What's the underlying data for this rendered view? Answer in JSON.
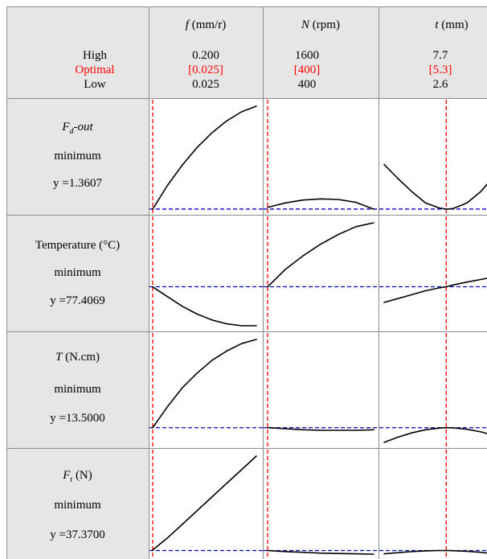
{
  "header": {
    "factors": [
      {
        "name": "f",
        "unit": "(mm/r)",
        "high": "0.200",
        "optimal": "[0.025]",
        "low": "0.025"
      },
      {
        "name": "N",
        "unit": "(rpm)",
        "high": "1600",
        "optimal": "[400]",
        "low": "400"
      },
      {
        "name": "t",
        "unit": "(mm)",
        "high": "7.7",
        "optimal": "[5.3]",
        "low": "2.6"
      }
    ],
    "row_labels": {
      "high": "High",
      "optimal": "Optimal",
      "low": "Low"
    }
  },
  "responses": [
    {
      "name": "F",
      "sub": "d",
      "suffix": "-out",
      "goal": "minimum",
      "y_text": "y =1.3607"
    },
    {
      "name": "Temperature (°C)",
      "goal": "minimum",
      "y_text": "y =77.4069"
    },
    {
      "name": "T",
      "suffix": " (N.cm)",
      "goal": "minimum",
      "y_text": "y =13.5000"
    },
    {
      "name": "F",
      "sub": "t",
      "suffix": " (N)",
      "goal": "minimum",
      "y_text": "y =37.3700"
    }
  ],
  "colors": {
    "optimal_text": "#ff0000",
    "optimal_line": "#ff0000",
    "response_line": "#0000cc",
    "curve": "#000000",
    "label_bg": "#e6e6e6"
  },
  "chart_data": {
    "type": "line",
    "title": "",
    "factors": [
      "f",
      "N",
      "t"
    ],
    "factor_ranges": {
      "f": [
        0.025,
        0.2
      ],
      "N": [
        400,
        1600
      ],
      "t": [
        2.6,
        7.7
      ]
    },
    "optimal": {
      "f": 0.025,
      "N": 400,
      "t": 5.3
    },
    "responses": [
      {
        "name": "Fd-out",
        "optimal_y": 1.3607,
        "curves": {
          "f": {
            "x": [
              0.025,
              0.05,
              0.075,
              0.1,
              0.125,
              0.15,
              0.175,
              0.2
            ],
            "y": [
              1.36,
              1.78,
              2.14,
              2.45,
              2.71,
              2.92,
              3.08,
              3.18
            ]
          },
          "N": {
            "x": [
              400,
              600,
              800,
              1000,
              1200,
              1400,
              1600
            ],
            "y": [
              1.39,
              1.47,
              1.52,
              1.54,
              1.53,
              1.48,
              1.36
            ]
          },
          "t": {
            "x": [
              2.6,
              3.2,
              3.8,
              4.4,
              5.0,
              5.3,
              5.6,
              6.2,
              6.8,
              7.3
            ],
            "y": [
              2.15,
              1.9,
              1.67,
              1.47,
              1.38,
              1.36,
              1.37,
              1.47,
              1.67,
              1.9
            ]
          }
        }
      },
      {
        "name": "Temperature (°C)",
        "optimal_y": 77.4069,
        "curves": {
          "f": {
            "x": [
              0.025,
              0.05,
              0.075,
              0.1,
              0.125,
              0.15,
              0.175,
              0.2
            ],
            "y": [
              77.4,
              76.9,
              76.4,
              76.0,
              75.7,
              75.5,
              75.4,
              75.4
            ]
          },
          "N": {
            "x": [
              400,
              600,
              800,
              1000,
              1200,
              1400,
              1600
            ],
            "y": [
              77.4,
              78.3,
              79.0,
              79.6,
              80.1,
              80.5,
              80.7
            ]
          },
          "t": {
            "x": [
              2.6,
              3.2,
              3.8,
              4.4,
              5.0,
              5.3,
              5.6,
              6.2,
              6.8,
              7.3
            ],
            "y": [
              76.6,
              76.8,
              77.0,
              77.2,
              77.35,
              77.41,
              77.5,
              77.65,
              77.78,
              77.9
            ]
          }
        }
      },
      {
        "name": "T (N.cm)",
        "optimal_y": 13.5,
        "curves": {
          "f": {
            "x": [
              0.025,
              0.05,
              0.075,
              0.1,
              0.125,
              0.15,
              0.175,
              0.2
            ],
            "y": [
              13.5,
              15.5,
              17.3,
              18.7,
              19.9,
              20.8,
              21.5,
              21.9
            ]
          },
          "N": {
            "x": [
              400,
              600,
              800,
              1000,
              1200,
              1400,
              1600
            ],
            "y": [
              13.5,
              13.4,
              13.3,
              13.25,
              13.25,
              13.25,
              13.3
            ]
          },
          "t": {
            "x": [
              2.6,
              3.2,
              3.8,
              4.4,
              5.0,
              5.3,
              5.6,
              6.2,
              6.8,
              7.3
            ],
            "y": [
              12.1,
              12.6,
              13.0,
              13.3,
              13.46,
              13.5,
              13.48,
              13.35,
              13.1,
              12.8
            ]
          }
        }
      },
      {
        "name": "Ft (N)",
        "optimal_y": 37.37,
        "curves": {
          "f": {
            "x": [
              0.025,
              0.05,
              0.075,
              0.1,
              0.125,
              0.15,
              0.175,
              0.2
            ],
            "y": [
              37.4,
              38.2,
              39.1,
              40.0,
              40.9,
              41.8,
              42.7,
              43.6
            ]
          },
          "N": {
            "x": [
              400,
              600,
              800,
              1000,
              1200,
              1400,
              1600
            ],
            "y": [
              37.37,
              37.3,
              37.25,
              37.2,
              37.17,
              37.15,
              37.13
            ]
          },
          "t": {
            "x": [
              2.6,
              3.2,
              3.8,
              4.4,
              5.0,
              5.3,
              5.6,
              6.2,
              6.8,
              7.3
            ],
            "y": [
              37.15,
              37.23,
              37.3,
              37.35,
              37.37,
              37.37,
              37.36,
              37.32,
              37.25,
              37.17
            ]
          }
        }
      }
    ]
  }
}
